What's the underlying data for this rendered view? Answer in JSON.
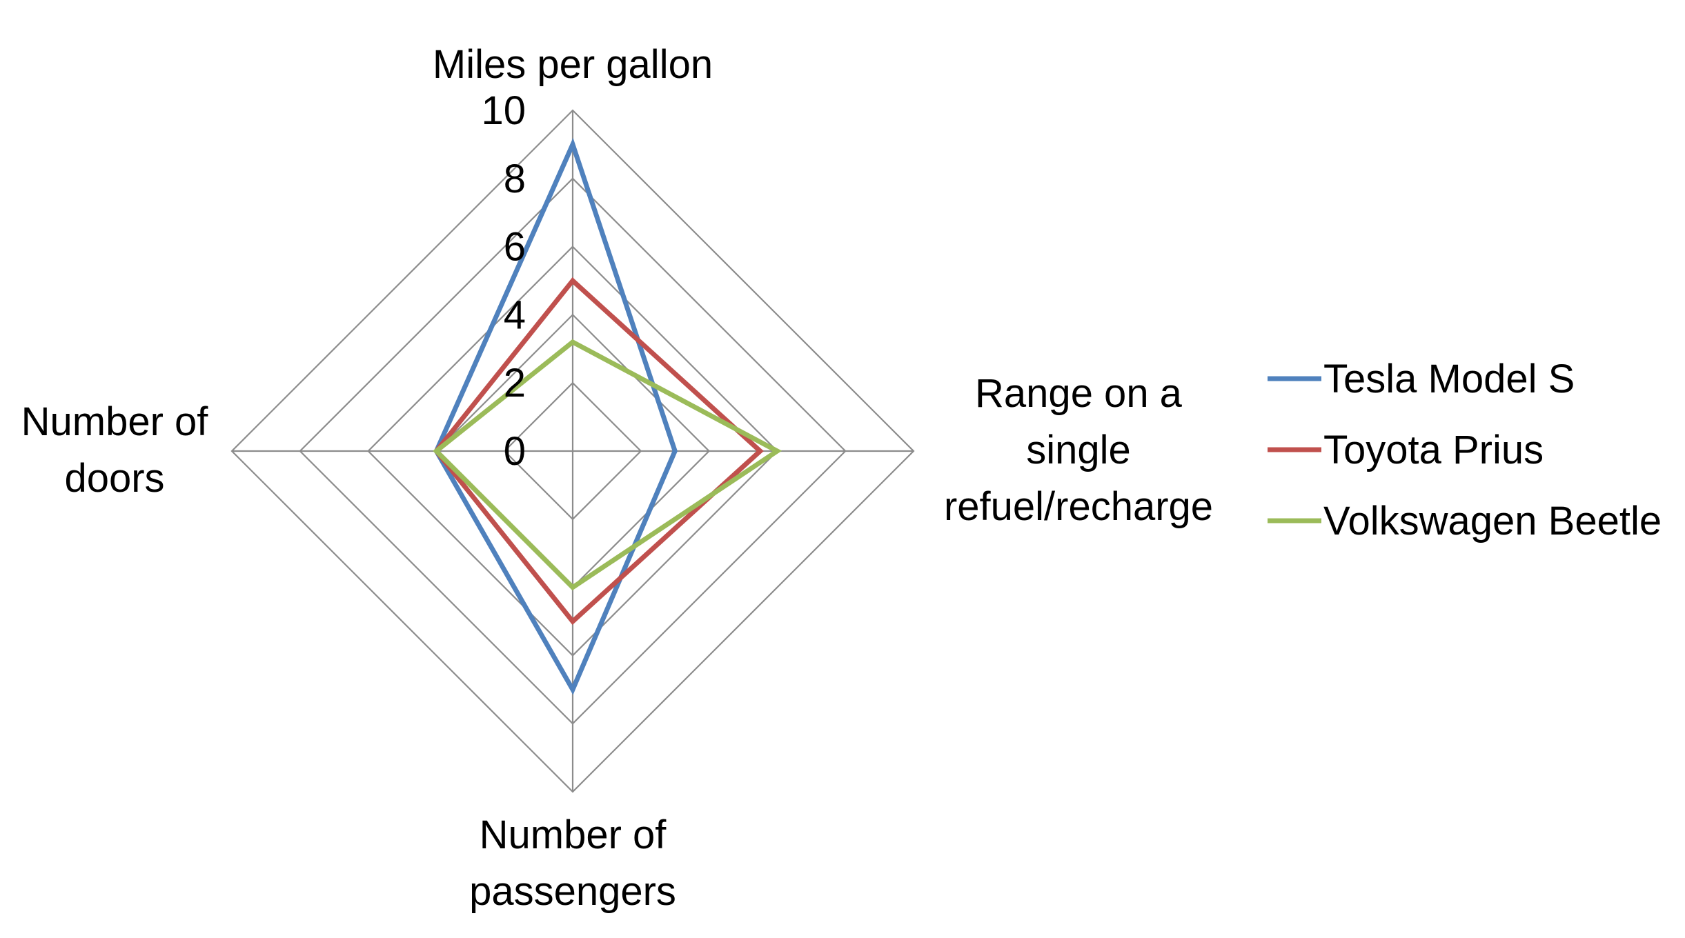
{
  "chart_data": {
    "type": "radar",
    "axes": [
      "Miles per gallon",
      "Range on a single refuel/recharge",
      "Number of passengers",
      "Number of doors"
    ],
    "axis_label_lines": [
      [
        "Miles per gallon"
      ],
      [
        "Range on a",
        "single",
        "refuel/recharge"
      ],
      [
        "Number of",
        "passengers"
      ],
      [
        "Number of",
        "doors"
      ]
    ],
    "range": [
      0,
      10
    ],
    "ticks": [
      "0",
      "2",
      "4",
      "6",
      "8",
      "10"
    ],
    "tick_values": [
      0,
      2,
      4,
      6,
      8,
      10
    ],
    "grid_levels": [
      0,
      2,
      4,
      6,
      8,
      10
    ],
    "grid": true,
    "legend_position": "right",
    "series": [
      {
        "name": "Tesla Model S",
        "color": "#4F81BD",
        "values": [
          9,
          3,
          7,
          4
        ]
      },
      {
        "name": "Toyota Prius",
        "color": "#C0504D",
        "values": [
          5,
          5.5,
          5,
          4
        ]
      },
      {
        "name": "Volkswagen Beetle",
        "color": "#9BBB59",
        "values": [
          3.2,
          6,
          4,
          4
        ]
      }
    ]
  }
}
